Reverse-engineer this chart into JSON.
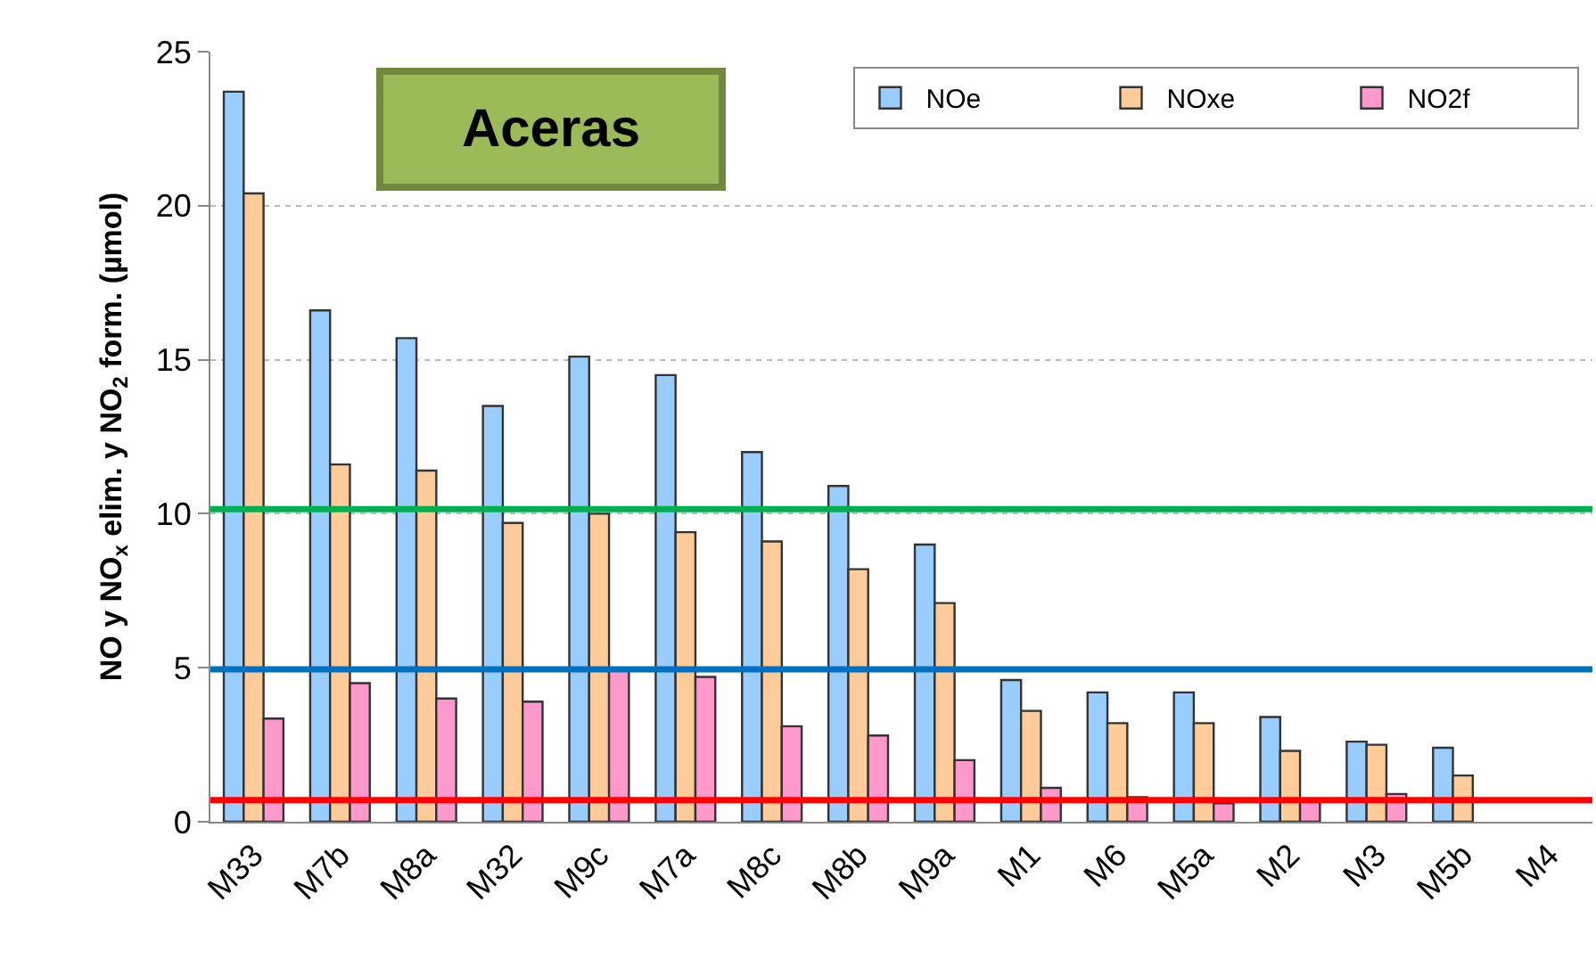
{
  "chart_data": {
    "type": "bar",
    "title": "Aceras",
    "ylabel": "NO y NO$_{x}$ elim. y NO$_{2}$ form. (µmol)",
    "categories": [
      "M33",
      "M7b",
      "M8a",
      "M32",
      "M9c",
      "M7a",
      "M8c",
      "M8b",
      "M9a",
      "M1",
      "M6",
      "M5a",
      "M2",
      "M3",
      "M5b",
      "M4"
    ],
    "series": [
      {
        "name": "NOe",
        "color": "#99ccff",
        "values": [
          23.7,
          16.6,
          15.7,
          13.5,
          15.1,
          14.5,
          12.0,
          10.9,
          9.0,
          4.6,
          4.2,
          4.2,
          3.4,
          2.6,
          2.4,
          null
        ]
      },
      {
        "name": "NOxe",
        "color": "#ffcc99",
        "values": [
          20.4,
          11.6,
          11.4,
          9.7,
          10.0,
          9.4,
          9.1,
          8.2,
          7.1,
          3.6,
          3.2,
          3.2,
          2.3,
          2.5,
          1.5,
          null
        ]
      },
      {
        "name": "NO2f",
        "color": "#ff99cc",
        "values": [
          3.35,
          4.5,
          4.0,
          3.9,
          4.9,
          4.7,
          3.1,
          2.8,
          2.0,
          1.1,
          0.8,
          0.6,
          0.7,
          0.9,
          null,
          null
        ]
      }
    ],
    "ylim": [
      0,
      25
    ],
    "yticks": [
      0,
      5,
      10,
      15,
      20,
      25
    ],
    "grid": "y",
    "legend": "top right",
    "ref_lines": [
      {
        "axis": "y",
        "value": 10.15,
        "color": "#00b050"
      },
      {
        "axis": "y",
        "value": 4.95,
        "color": "#0070c0"
      },
      {
        "axis": "y",
        "value": 0.7,
        "color": "#ff0000"
      }
    ]
  }
}
